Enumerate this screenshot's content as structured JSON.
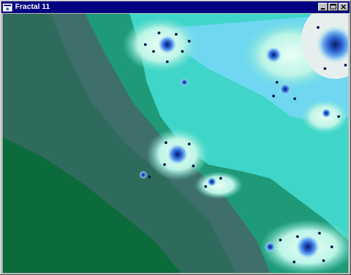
{
  "window": {
    "title": "Fractal 11",
    "icon": "fractal-app-icon",
    "controls": {
      "minimize_icon": "minimize-icon",
      "maximize_icon": "maximize-icon",
      "close_icon": "close-icon"
    }
  },
  "canvas": {
    "description_icon": "fractal-image",
    "colors": {
      "dark_green": "#0b6b3a",
      "slate": "#3f6f6a",
      "teal": "#1f9a78",
      "aqua": "#3fd6c9",
      "light_cyan": "#a9f2e6",
      "blue": "#2a5fd0",
      "titlebar": "#000080"
    }
  }
}
